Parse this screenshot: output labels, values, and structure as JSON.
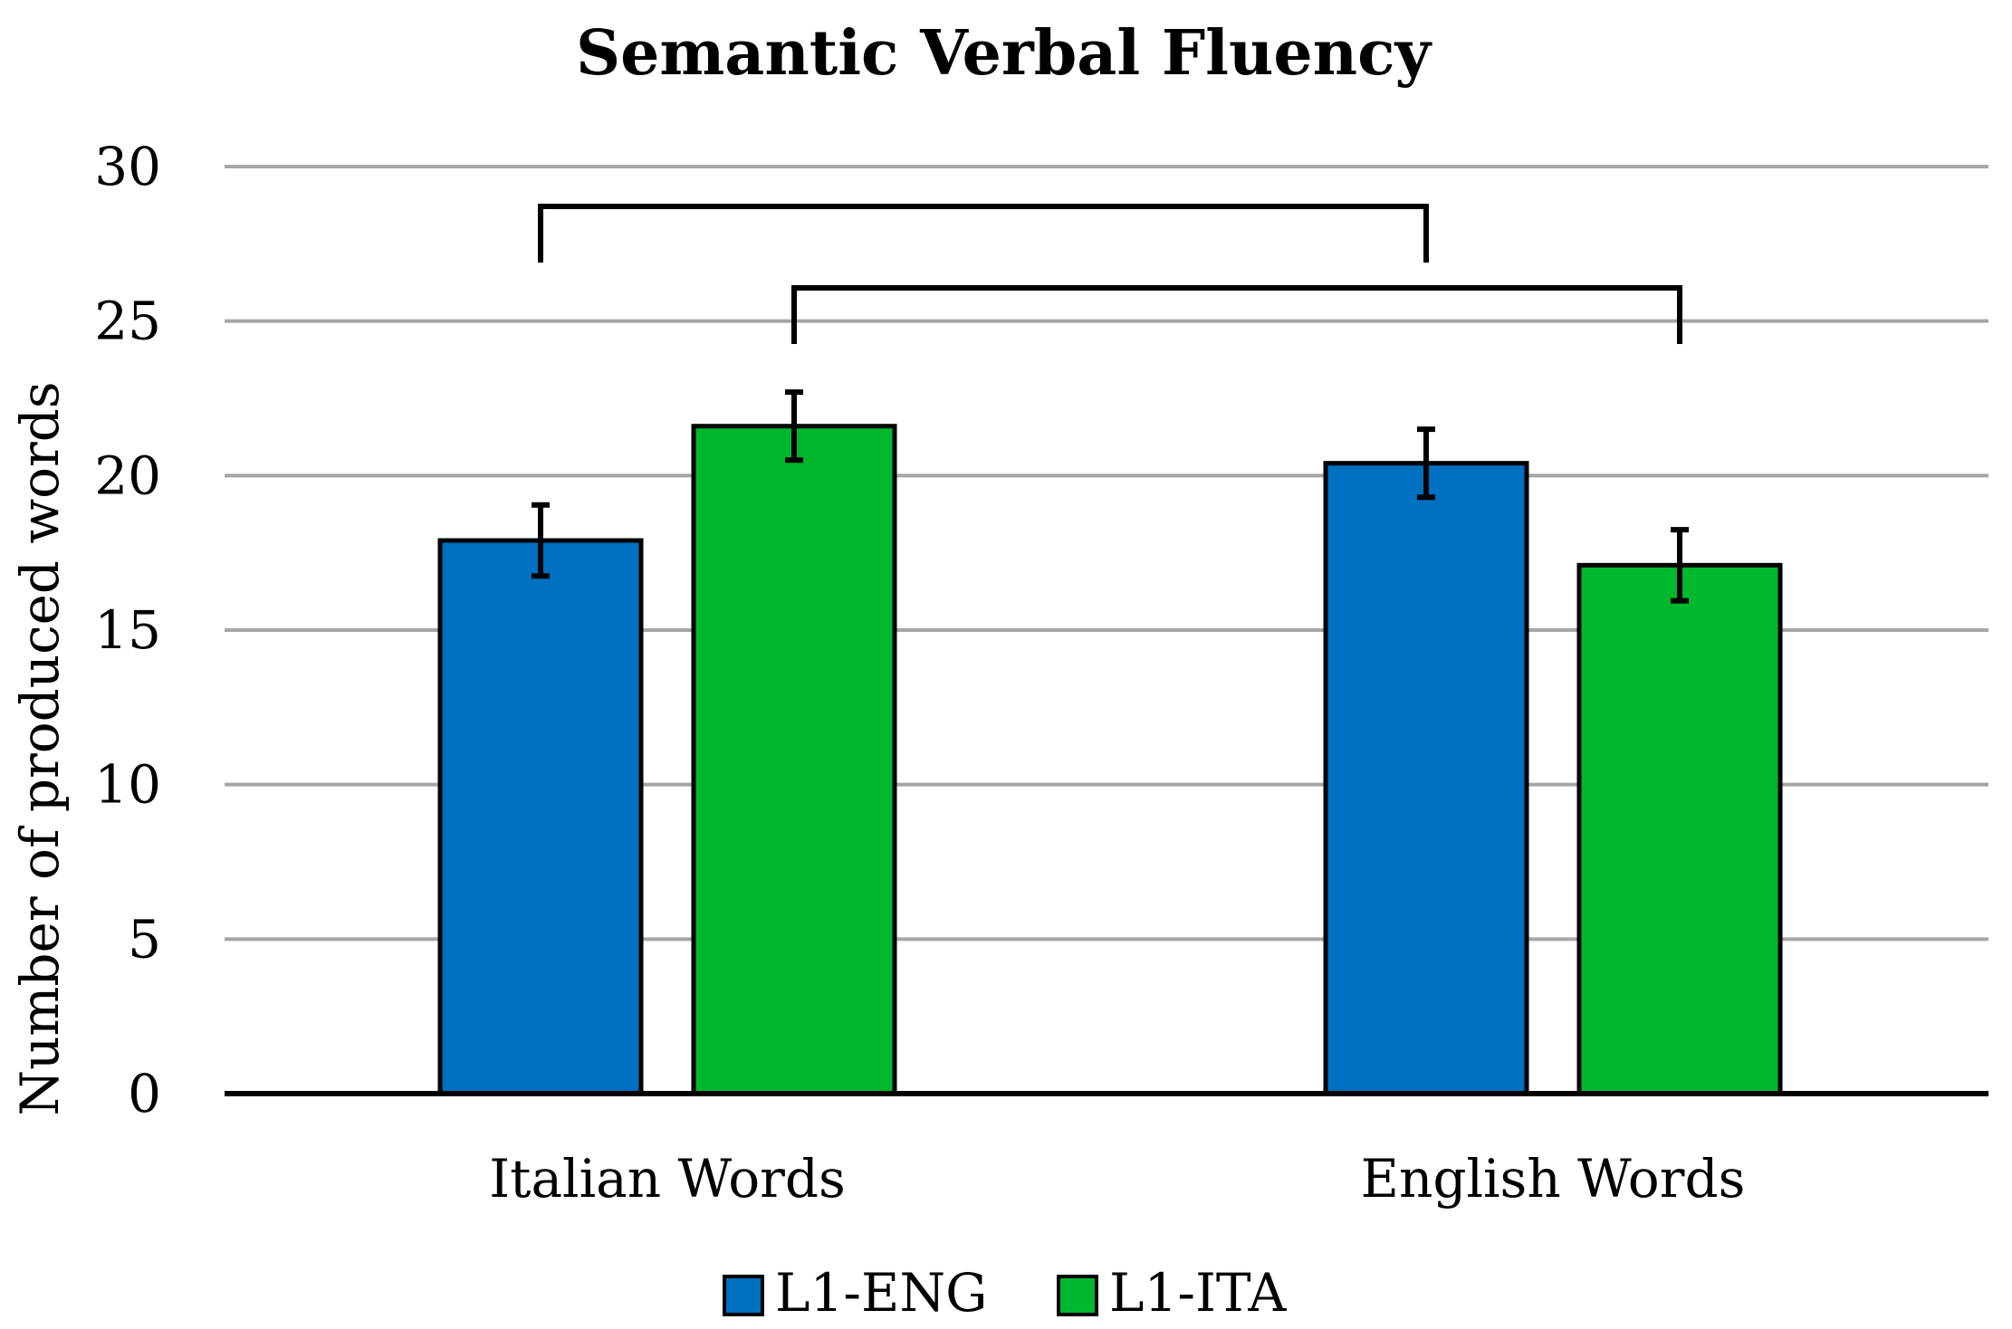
{
  "chart_data": {
    "type": "bar",
    "title": "Semantic Verbal Fluency",
    "xlabel": "",
    "ylabel": "Number of produced words",
    "ylim": [
      0,
      30
    ],
    "yticks": [
      0,
      5,
      10,
      15,
      20,
      25,
      30
    ],
    "categories": [
      "Italian Words",
      "English Words"
    ],
    "series": [
      {
        "name": "L1-ENG",
        "color": "#0070C0",
        "values": [
          17.9,
          20.4
        ],
        "errors": [
          1.15,
          1.1
        ]
      },
      {
        "name": "L1-ITA",
        "color": "#00B82E",
        "values": [
          21.6,
          17.1
        ],
        "errors": [
          1.1,
          1.15
        ]
      }
    ],
    "grid": true,
    "legend_position": "bottom",
    "significance_brackets": [
      {
        "from_category": 0,
        "from_series": 0,
        "to_category": 1,
        "to_series": 0
      },
      {
        "from_category": 0,
        "from_series": 1,
        "to_category": 1,
        "to_series": 1
      }
    ]
  }
}
